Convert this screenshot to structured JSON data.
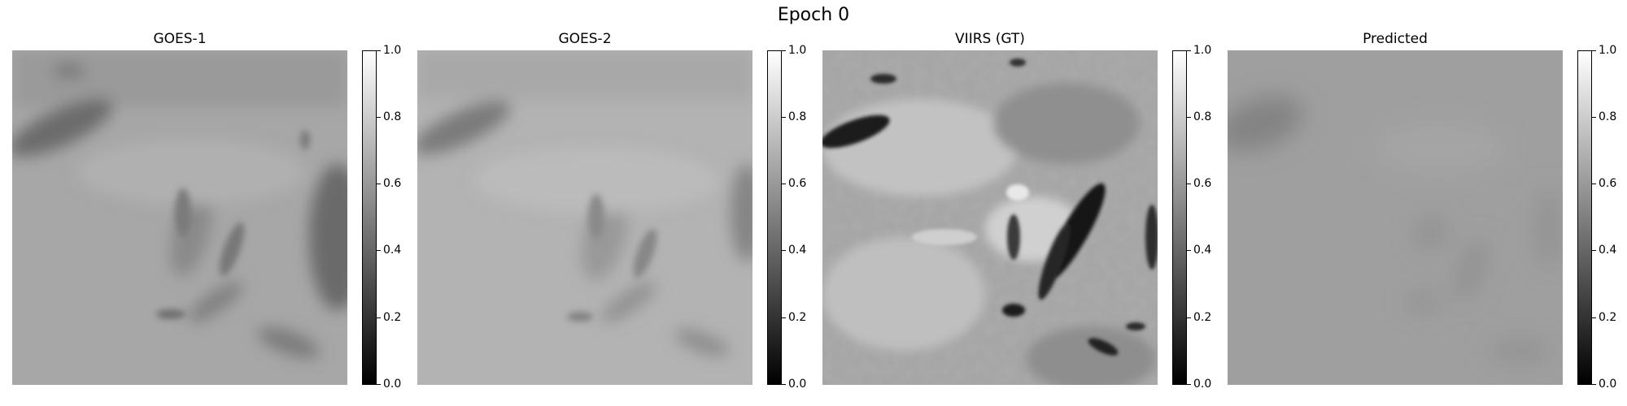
{
  "figure": {
    "title": "Epoch 0"
  },
  "colors": {
    "cmap": "gray",
    "background": "#ffffff"
  },
  "panels": [
    {
      "id": "goes1",
      "title": "GOES-1",
      "image": "blurred grayscale cloud field, mostly light gray with darker streaks"
    },
    {
      "id": "goes2",
      "title": "GOES-2",
      "image": "blurred grayscale cloud field, slightly lighter than GOES-1"
    },
    {
      "id": "viirs",
      "title": "VIIRS (GT)",
      "image": "high-resolution grayscale cloud field with dark streaks at center-right"
    },
    {
      "id": "pred",
      "title": "Predicted",
      "image": "smooth uniform mid-gray field with faint darker blobs"
    }
  ],
  "chart_data": [
    {
      "type": "heatmap",
      "title": "GOES-1",
      "colorbar": {
        "range": [
          0.0,
          1.0
        ],
        "ticks": [
          "0.0",
          "0.2",
          "0.4",
          "0.6",
          "0.8",
          "1.0"
        ]
      }
    },
    {
      "type": "heatmap",
      "title": "GOES-2",
      "colorbar": {
        "range": [
          0.0,
          1.0
        ],
        "ticks": [
          "0.0",
          "0.2",
          "0.4",
          "0.6",
          "0.8",
          "1.0"
        ]
      }
    },
    {
      "type": "heatmap",
      "title": "VIIRS (GT)",
      "colorbar": {
        "range": [
          0.0,
          1.0
        ],
        "ticks": [
          "0.0",
          "0.2",
          "0.4",
          "0.6",
          "0.8",
          "1.0"
        ]
      }
    },
    {
      "type": "heatmap",
      "title": "Predicted",
      "colorbar": {
        "range": [
          0.0,
          1.0
        ],
        "ticks": [
          "0.0",
          "0.2",
          "0.4",
          "0.6",
          "0.8",
          "1.0"
        ]
      }
    }
  ]
}
